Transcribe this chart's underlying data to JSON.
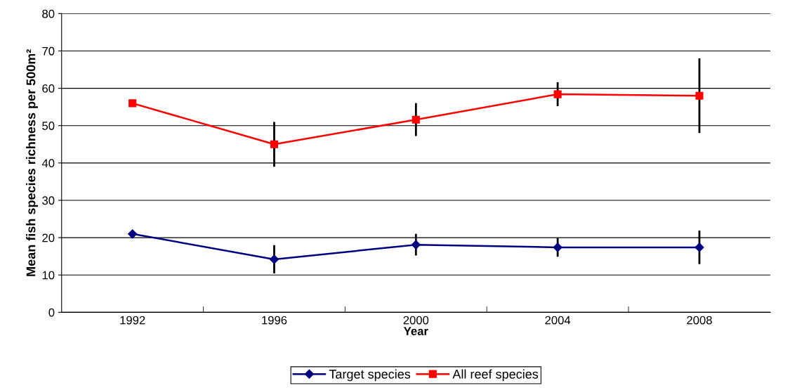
{
  "chart_data": {
    "type": "line",
    "xlabel": "Year",
    "ylabel": "Mean fish species richness per 500m²",
    "categories": [
      "1992",
      "1996",
      "2000",
      "2004",
      "2008"
    ],
    "series": [
      {
        "name": "Target species",
        "color": "#000080",
        "marker": "diamond",
        "values": [
          21.0,
          14.2,
          18.1,
          17.4,
          17.4
        ],
        "errors": [
          null,
          3.8,
          2.9,
          2.5,
          4.5
        ]
      },
      {
        "name": "All reef species",
        "color": "#ff0000",
        "marker": "square",
        "values": [
          56.0,
          45.0,
          51.6,
          58.4,
          58.0
        ],
        "errors": [
          null,
          6,
          4.4,
          3.2,
          10
        ]
      }
    ],
    "ylim": [
      0,
      80
    ],
    "yticks": [
      0,
      10,
      20,
      30,
      40,
      50,
      60,
      70,
      80
    ],
    "grid": "y",
    "legend": "bottom",
    "line_style": "solid"
  }
}
